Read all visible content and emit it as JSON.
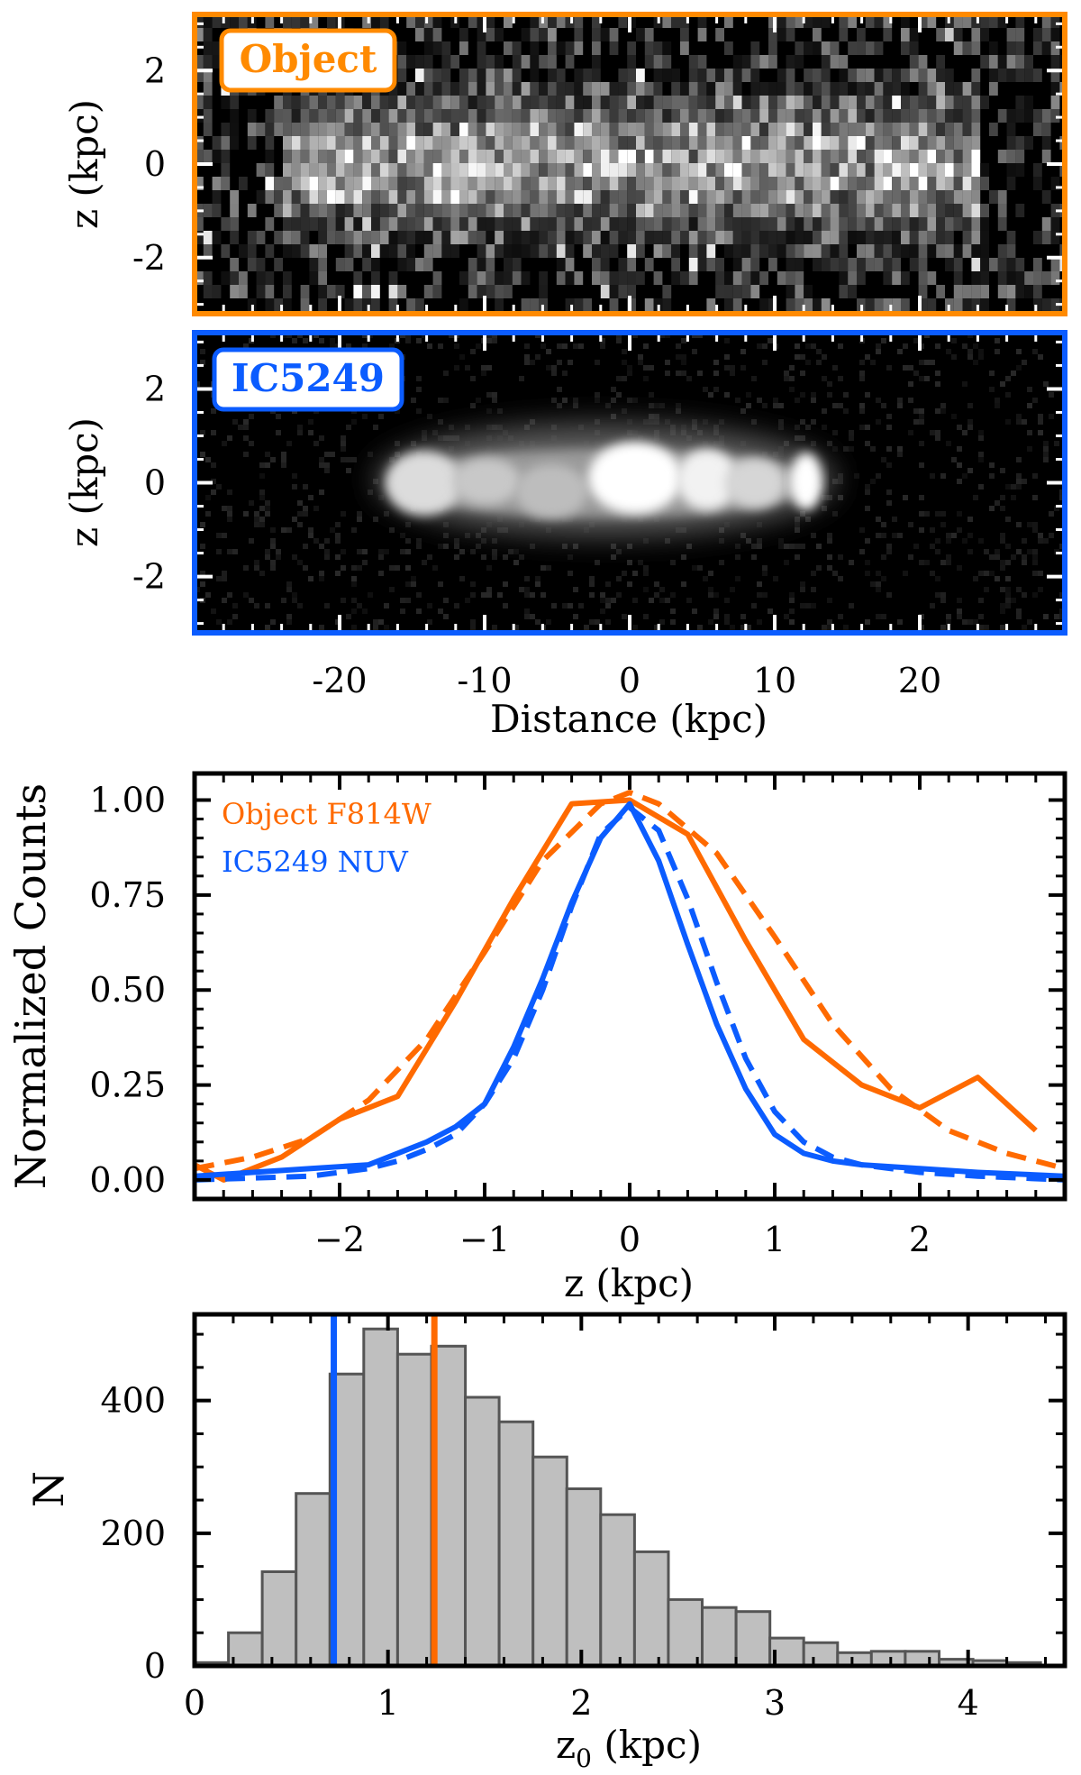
{
  "colors": {
    "object": "#ff6a00",
    "ic5249": "#0b5cff",
    "hist_fill": "#bfbfbf",
    "hist_edge": "#555555"
  },
  "chart_data": [
    {
      "type": "image",
      "panel": "object-image",
      "label": "Object",
      "ylabel": "z (kpc)",
      "xlim": [
        -30,
        30
      ],
      "ylim": [
        -3.2,
        3.2
      ],
      "yticks": [
        "2",
        "0",
        "-2"
      ],
      "ytick_values": [
        2,
        0,
        -2
      ]
    },
    {
      "type": "image",
      "panel": "ic5249-image",
      "label": "IC5249",
      "ylabel": "z (kpc)",
      "xlabel": "Distance (kpc)",
      "xlim": [
        -30,
        30
      ],
      "ylim": [
        -3.2,
        3.2
      ],
      "xticks": [
        "-20",
        "-10",
        "0",
        "10",
        "20"
      ],
      "xtick_values": [
        -20,
        -10,
        0,
        10,
        20
      ],
      "yticks": [
        "2",
        "0",
        "-2"
      ],
      "ytick_values": [
        2,
        0,
        -2
      ]
    },
    {
      "type": "line",
      "panel": "profile-plot",
      "xlabel": "z (kpc)",
      "ylabel": "Normalized Counts",
      "xlim": [
        -3,
        3
      ],
      "ylim": [
        -0.05,
        1.07
      ],
      "xticks": [
        "−2",
        "−1",
        "0",
        "1",
        "2"
      ],
      "xtick_values": [
        -2,
        -1,
        0,
        1,
        2
      ],
      "yticks": [
        "1.00",
        "0.75",
        "0.50",
        "0.25",
        "0.00"
      ],
      "ytick_values": [
        1.0,
        0.75,
        0.5,
        0.25,
        0.0
      ],
      "legend": [
        "Object F814W",
        "IC5249 NUV"
      ],
      "series": [
        {
          "name": "Object F814W",
          "style": "solid",
          "x": [
            -3.0,
            -2.8,
            -2.4,
            -2.0,
            -1.6,
            -1.2,
            -0.8,
            -0.4,
            0.0,
            0.4,
            0.8,
            1.2,
            1.6,
            2.0,
            2.4,
            2.8
          ],
          "y": [
            0.04,
            0.0,
            0.06,
            0.16,
            0.22,
            0.47,
            0.74,
            0.99,
            1.0,
            0.91,
            0.63,
            0.37,
            0.25,
            0.19,
            0.27,
            0.13
          ]
        },
        {
          "name": "Object F814W fit",
          "style": "dashed",
          "x": [
            -3.0,
            -2.6,
            -2.2,
            -1.8,
            -1.4,
            -1.0,
            -0.6,
            -0.2,
            0.0,
            0.2,
            0.6,
            1.0,
            1.4,
            1.8,
            2.2,
            2.6,
            3.0
          ],
          "y": [
            0.03,
            0.06,
            0.11,
            0.21,
            0.37,
            0.6,
            0.84,
            0.99,
            1.02,
            0.99,
            0.86,
            0.64,
            0.41,
            0.24,
            0.13,
            0.07,
            0.03
          ]
        },
        {
          "name": "IC5249 NUV",
          "style": "solid",
          "x": [
            -3.0,
            -2.6,
            -2.2,
            -1.8,
            -1.6,
            -1.4,
            -1.2,
            -1.0,
            -0.8,
            -0.6,
            -0.4,
            -0.2,
            0.0,
            0.2,
            0.4,
            0.6,
            0.8,
            1.0,
            1.2,
            1.4,
            1.6,
            2.0,
            2.4,
            3.0
          ],
          "y": [
            0.01,
            0.02,
            0.03,
            0.04,
            0.07,
            0.1,
            0.14,
            0.2,
            0.35,
            0.53,
            0.73,
            0.9,
            0.99,
            0.84,
            0.62,
            0.41,
            0.24,
            0.12,
            0.07,
            0.05,
            0.04,
            0.03,
            0.02,
            0.01
          ]
        },
        {
          "name": "IC5249 NUV fit",
          "style": "dashed",
          "x": [
            -3.0,
            -2.6,
            -2.2,
            -1.8,
            -1.6,
            -1.4,
            -1.2,
            -1.0,
            -0.8,
            -0.6,
            -0.4,
            -0.2,
            0.0,
            0.2,
            0.4,
            0.6,
            0.8,
            1.0,
            1.2,
            1.4,
            1.6,
            2.0,
            2.4,
            3.0
          ],
          "y": [
            0.0,
            0.005,
            0.01,
            0.03,
            0.05,
            0.08,
            0.12,
            0.2,
            0.32,
            0.5,
            0.72,
            0.91,
            0.98,
            0.92,
            0.74,
            0.52,
            0.32,
            0.18,
            0.1,
            0.06,
            0.04,
            0.02,
            0.01,
            0.0
          ]
        }
      ]
    },
    {
      "type": "histogram",
      "panel": "histogram",
      "xlabel_main": "z",
      "xlabel_sub": "0",
      "xlabel_units": " (kpc)",
      "ylabel": "N",
      "xlim": [
        0,
        4.5
      ],
      "ylim": [
        0,
        530
      ],
      "xticks": [
        "0",
        "1",
        "2",
        "3",
        "4"
      ],
      "xtick_values": [
        0,
        1,
        2,
        3,
        4
      ],
      "yticks": [
        "0",
        "200",
        "400"
      ],
      "ytick_values": [
        0,
        200,
        400
      ],
      "bin_edges": [
        0.0,
        0.175,
        0.35,
        0.525,
        0.7,
        0.875,
        1.05,
        1.225,
        1.4,
        1.575,
        1.75,
        1.925,
        2.1,
        2.275,
        2.45,
        2.625,
        2.8,
        2.975,
        3.15,
        3.325,
        3.5,
        3.675,
        3.85,
        4.025,
        4.2,
        4.375
      ],
      "counts": [
        5,
        50,
        142,
        260,
        440,
        508,
        470,
        482,
        405,
        368,
        315,
        267,
        228,
        172,
        100,
        88,
        82,
        42,
        35,
        20,
        22,
        22,
        10,
        8,
        5
      ],
      "vlines": [
        {
          "name": "IC5249",
          "x": 0.72
        },
        {
          "name": "Object",
          "x": 1.24
        }
      ]
    }
  ]
}
